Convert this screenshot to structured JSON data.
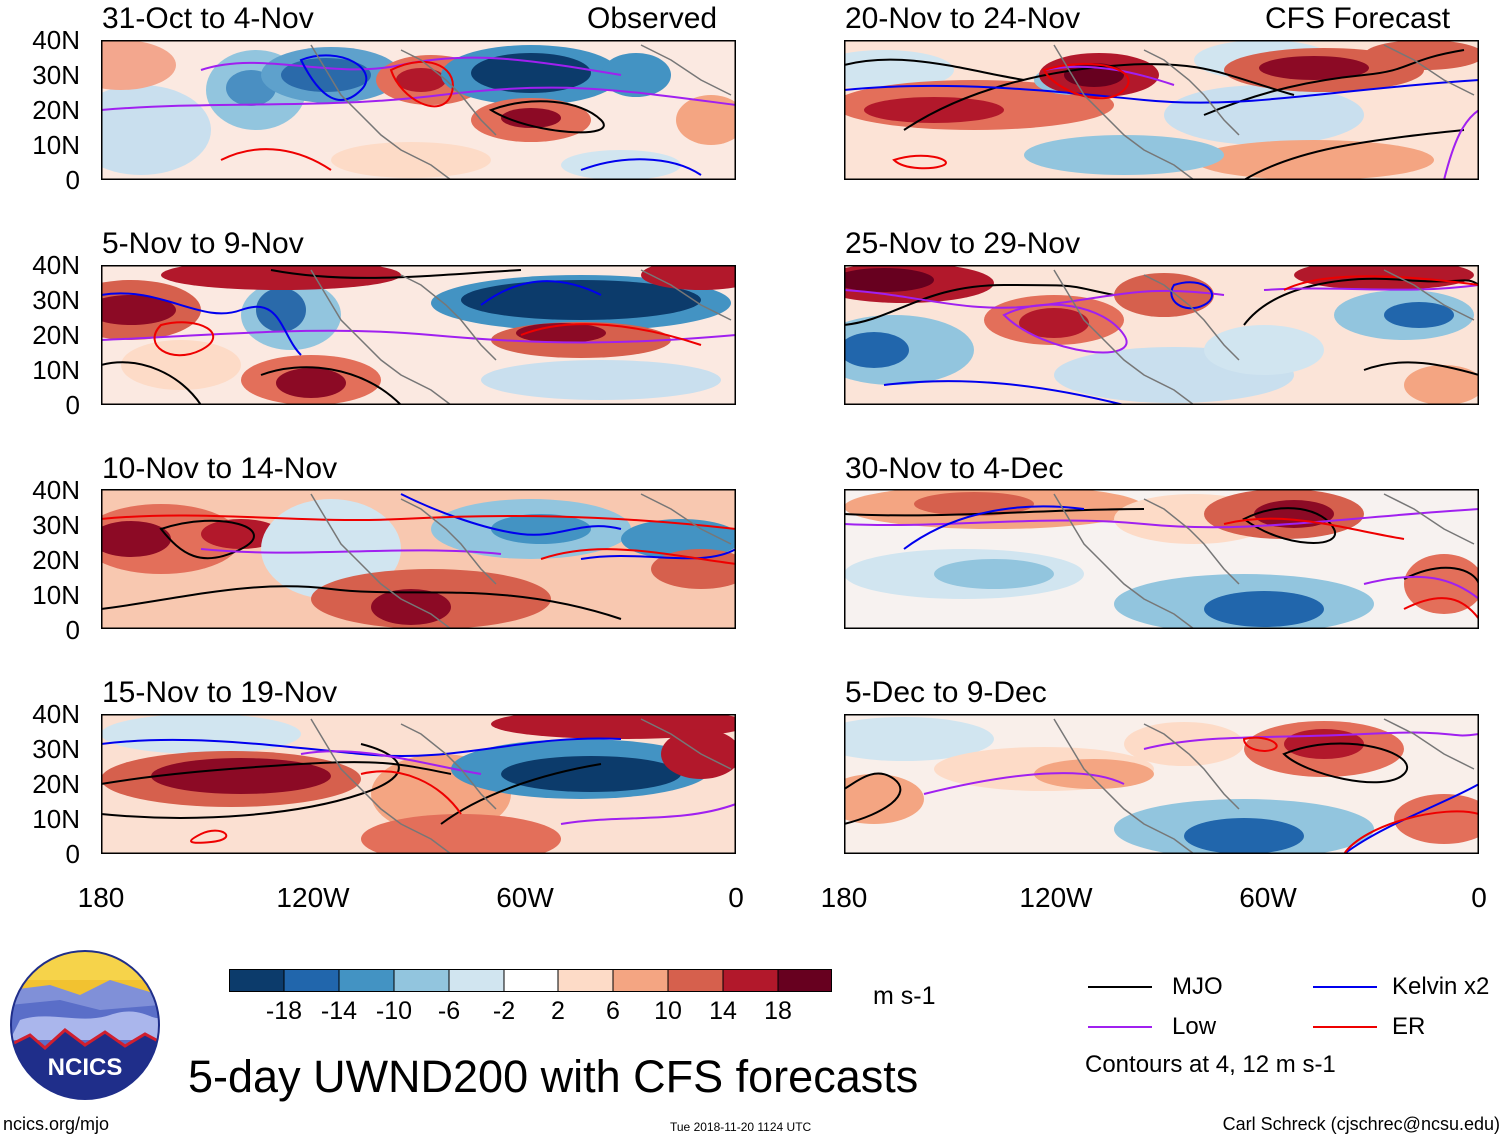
{
  "figure": {
    "title": "5-day UWND200 with CFS forecasts",
    "site": "ncics.org/mjo",
    "timestamp": "Tue 2018-11-20 1124 UTC",
    "author": "Carl Schreck (cjschrec@ncsu.edu)",
    "logo_text": "NCICS"
  },
  "columns": {
    "left_label": "Observed",
    "right_label": "CFS Forecast"
  },
  "panels_left": [
    {
      "period": "31-Oct to 4-Nov"
    },
    {
      "period": "5-Nov to 9-Nov"
    },
    {
      "period": "10-Nov to 14-Nov"
    },
    {
      "period": "15-Nov to 19-Nov"
    }
  ],
  "panels_right": [
    {
      "period": "20-Nov to 24-Nov"
    },
    {
      "period": "25-Nov to 29-Nov"
    },
    {
      "period": "30-Nov to 4-Dec"
    },
    {
      "period": "5-Dec to 9-Dec"
    }
  ],
  "y_ticks": [
    "40N",
    "30N",
    "20N",
    "10N",
    "0"
  ],
  "x_ticks": [
    "180",
    "120W",
    "60W",
    "0"
  ],
  "colorbar": {
    "units": "m s-1",
    "labels": [
      "-18",
      "-14",
      "-10",
      "-6",
      "-2",
      "2",
      "6",
      "10",
      "14",
      "18"
    ],
    "colors": [
      "#0c3b6b",
      "#2166ac",
      "#4393c3",
      "#92c5de",
      "#d1e5f0",
      "#ffffff",
      "#fddbc7",
      "#f4a582",
      "#d6604d",
      "#b2182b",
      "#67001f"
    ]
  },
  "legend": {
    "items": [
      {
        "label": "MJO",
        "color": "#000000"
      },
      {
        "label": "Kelvin x2",
        "color": "#0000ee"
      },
      {
        "label": "Low",
        "color": "#a020f0"
      },
      {
        "label": "ER",
        "color": "#ee0000"
      }
    ],
    "note": "Contours at 4, 12 m s-1"
  }
}
